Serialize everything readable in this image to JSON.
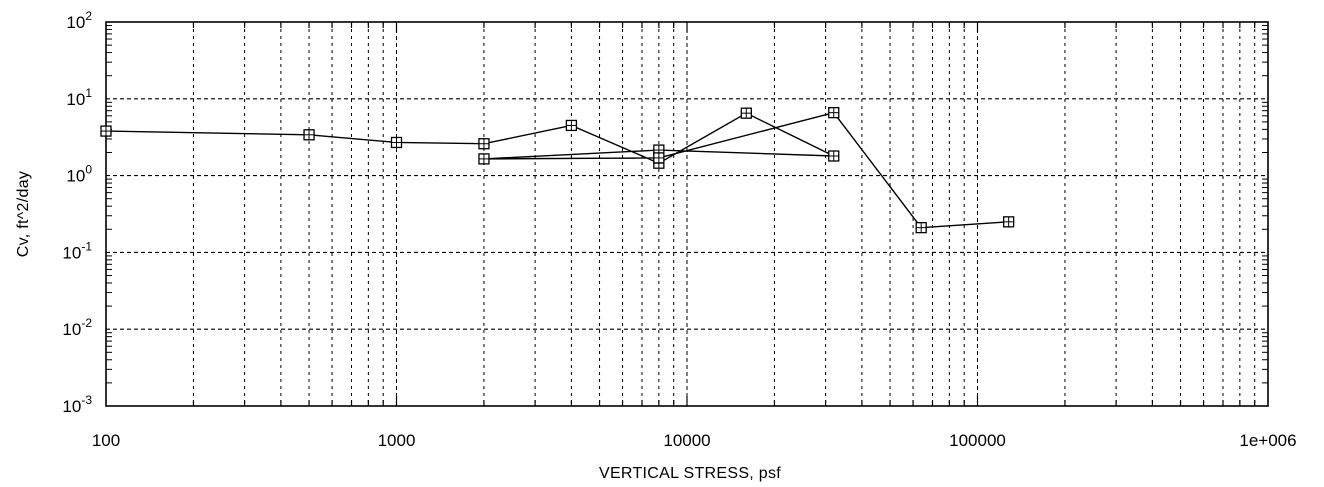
{
  "chart_data": {
    "type": "scatter",
    "title": "",
    "xlabel": "VERTICAL STRESS, psf",
    "ylabel": "Cv, ft^2/day",
    "x_scale": "log",
    "y_scale": "log",
    "xlim": [
      100,
      1000000
    ],
    "ylim": [
      0.001,
      100
    ],
    "grid": true,
    "legend": "none",
    "x_tick_labels": [
      "100",
      "1000",
      "10000",
      "100000",
      "1e+006"
    ],
    "y_tick_labels": [
      {
        "base": "10",
        "exp": "2"
      },
      {
        "base": "10",
        "exp": "1"
      },
      {
        "base": "10",
        "exp": "0"
      },
      {
        "base": "10",
        "exp": "-1"
      },
      {
        "base": "10",
        "exp": "-2"
      },
      {
        "base": "10",
        "exp": "-3"
      }
    ],
    "series": [
      {
        "marker": "boxed-plus",
        "x": [
          100,
          500,
          1000,
          2000,
          4000,
          8000,
          16000,
          32000,
          8000,
          2000,
          8000,
          32000,
          64000,
          128000
        ],
        "y": [
          3.8,
          3.4,
          2.7,
          2.6,
          4.5,
          1.45,
          6.5,
          1.8,
          2.15,
          1.65,
          1.7,
          6.6,
          0.21,
          0.25
        ]
      }
    ]
  },
  "colors": {
    "line": "#000000",
    "grid": "#000000",
    "background": "#ffffff"
  }
}
